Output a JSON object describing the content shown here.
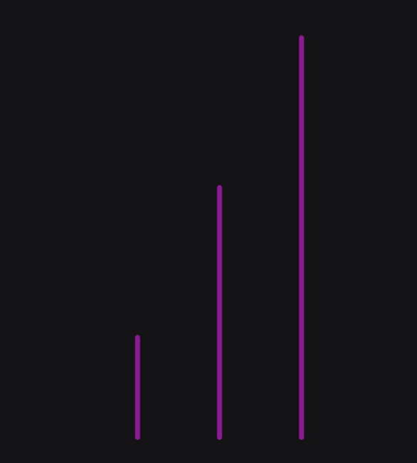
{
  "chart_data": {
    "type": "bar",
    "categories": [
      "",
      "",
      ""
    ],
    "values": [
      1.2,
      3.0,
      4.8
    ],
    "ylim": [
      0,
      4.8
    ],
    "grid": false,
    "legend": "none",
    "bar_color": "#8b1a96",
    "background_color": "#141416"
  }
}
